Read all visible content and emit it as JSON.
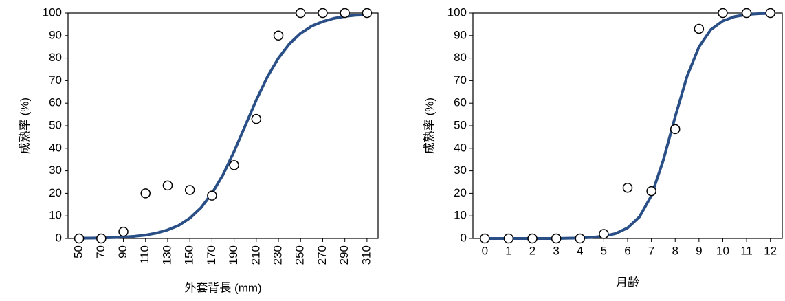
{
  "chart_data": [
    {
      "type": "scatter",
      "xlabel": "外套背長 (mm)",
      "ylabel": "成熟率 (%)",
      "xlim": [
        40,
        320
      ],
      "xticks": [
        50,
        70,
        90,
        110,
        130,
        150,
        170,
        190,
        210,
        230,
        250,
        270,
        290,
        310
      ],
      "ylim": [
        0,
        100
      ],
      "yticks": [
        0,
        10,
        20,
        30,
        40,
        50,
        60,
        70,
        80,
        90,
        100
      ],
      "grid": false,
      "series": [
        {
          "type": "line",
          "color": "#2a4f86",
          "x": [
            50,
            60,
            70,
            80,
            90,
            100,
            110,
            120,
            130,
            140,
            150,
            160,
            170,
            180,
            190,
            200,
            210,
            220,
            230,
            240,
            250,
            260,
            270,
            280,
            290,
            300,
            310
          ],
          "values": [
            0.1,
            0.15,
            0.24,
            0.38,
            0.61,
            0.97,
            1.5,
            2.4,
            3.8,
            5.8,
            9.0,
            13.6,
            20,
            28.3,
            38.6,
            50,
            61.4,
            71.7,
            80,
            86.4,
            91,
            94.2,
            96.2,
            97.6,
            98.5,
            99,
            99.2
          ]
        },
        {
          "type": "scatter",
          "color": "#ffffff",
          "x": [
            50,
            70,
            90,
            110,
            130,
            150,
            170,
            190,
            210,
            230,
            250,
            270,
            290,
            310
          ],
          "values": [
            0,
            0,
            3,
            20,
            23.5,
            21.5,
            19,
            32.5,
            53,
            90,
            100,
            100,
            100,
            100
          ]
        }
      ]
    },
    {
      "type": "scatter",
      "xlabel": "月齢",
      "ylabel": "成熟率 (%)",
      "xlim": [
        -0.5,
        12.5
      ],
      "xticks": [
        0,
        1,
        2,
        3,
        4,
        5,
        6,
        7,
        8,
        9,
        10,
        11,
        12
      ],
      "ylim": [
        0,
        100
      ],
      "yticks": [
        0,
        10,
        20,
        30,
        40,
        50,
        60,
        70,
        80,
        90,
        100
      ],
      "grid": false,
      "series": [
        {
          "type": "line",
          "color": "#2a4f86",
          "x": [
            0,
            0.5,
            1,
            1.5,
            2,
            2.5,
            3,
            3.5,
            4,
            4.5,
            5,
            5.5,
            6,
            6.5,
            7,
            7.5,
            8,
            8.5,
            9,
            9.5,
            10,
            10.5,
            11,
            11.5,
            12
          ],
          "values": [
            0,
            0,
            0,
            0,
            0,
            0,
            0,
            0.1,
            0.2,
            0.5,
            1,
            2.2,
            4.7,
            9.6,
            19,
            34.7,
            54,
            72,
            85,
            92.7,
            96.5,
            98.4,
            99.3,
            99.7,
            99.8
          ]
        },
        {
          "type": "scatter",
          "color": "#ffffff",
          "x": [
            0,
            1,
            2,
            3,
            4,
            5,
            6,
            7,
            8,
            9,
            10,
            11,
            12
          ],
          "values": [
            0,
            0,
            0,
            0,
            0,
            2,
            22.5,
            21,
            48.5,
            93,
            100,
            100,
            100
          ]
        }
      ]
    }
  ]
}
